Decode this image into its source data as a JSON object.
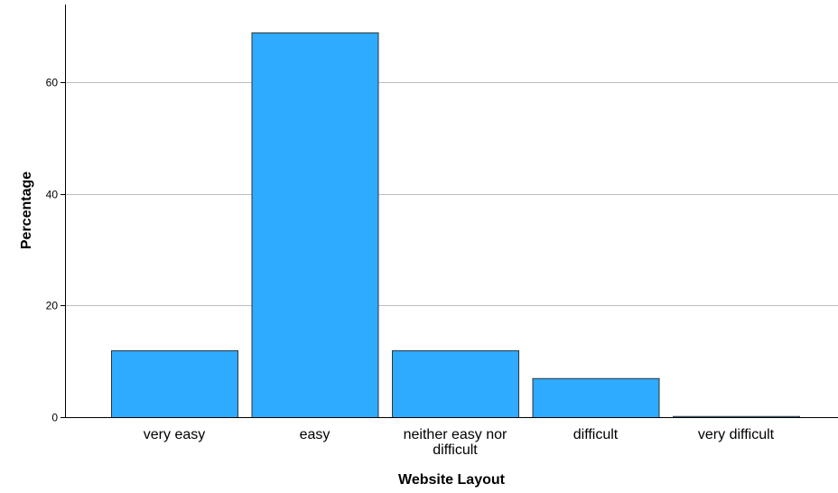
{
  "chart_data": {
    "type": "bar",
    "title": "",
    "xlabel": "Website Layout",
    "ylabel": "Percentage",
    "categories": [
      [
        "very easy"
      ],
      [
        "easy"
      ],
      [
        "neither easy nor",
        "difficult"
      ],
      [
        "difficult"
      ],
      [
        "very difficult"
      ]
    ],
    "values": [
      12,
      69,
      12,
      7,
      0.2
    ],
    "ylim": [
      0,
      74
    ],
    "yticks": [
      0,
      20,
      40,
      60
    ],
    "grid": true,
    "legend": "none",
    "colors": {
      "bar_fill": "#2EAAFF",
      "bar_stroke": "#333333",
      "gridline": "#BFBFBF",
      "axis": "#000000"
    }
  }
}
